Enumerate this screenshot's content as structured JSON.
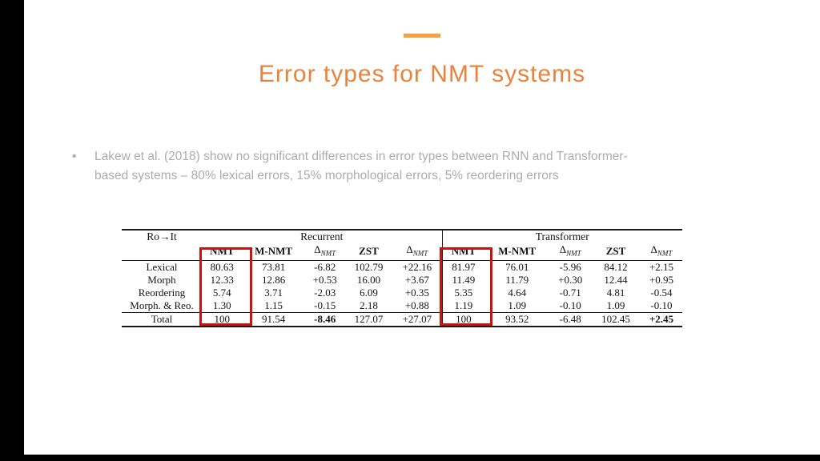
{
  "slide": {
    "title": "Error types for NMT systems",
    "title_color": "#e8823c",
    "bar_color": "#f0a33e",
    "bullet_marker": "•",
    "bullet_color": "#acacac",
    "bullet_lines": [
      "Lakew et al. (2018) show no significant differences in error types between RNN and Transformer-",
      "based systems – 80% lexical errors, 15% morphological errors, 5% reordering errors"
    ]
  },
  "table": {
    "corner_label": "Ro→It",
    "group_headers": [
      "Recurrent",
      "Transformer"
    ],
    "col_headers": [
      "NMT",
      "M-NMT",
      "Δ_NMT",
      "ZST",
      "Δ_NMT",
      "NMT",
      "M-NMT",
      "Δ_NMT",
      "ZST",
      "Δ_NMT"
    ],
    "rows": [
      {
        "label": "Lexical",
        "values": [
          "80.63",
          "73.81",
          "-6.82",
          "102.79",
          "+22.16",
          "81.97",
          "76.01",
          "-5.96",
          "84.12",
          "+2.15"
        ]
      },
      {
        "label": "Morph",
        "values": [
          "12.33",
          "12.86",
          "+0.53",
          "16.00",
          "+3.67",
          "11.49",
          "11.79",
          "+0.30",
          "12.44",
          "+0.95"
        ]
      },
      {
        "label": "Reordering",
        "values": [
          "5.74",
          "3.71",
          "-2.03",
          "6.09",
          "+0.35",
          "5.35",
          "4.64",
          "-0.71",
          "4.81",
          "-0.54"
        ]
      },
      {
        "label": "Morph. & Reo.",
        "values": [
          "1.30",
          "1.15",
          "-0.15",
          "2.18",
          "+0.88",
          "1.19",
          "1.09",
          "-0.10",
          "1.09",
          "-0.10"
        ]
      }
    ],
    "total_row": {
      "label": "Total",
      "values": [
        "100",
        "91.54",
        "-8.46",
        "127.07",
        "+27.07",
        "100",
        "93.52",
        "-6.48",
        "102.45",
        "+2.45"
      ],
      "bold_indices": [
        2,
        9
      ]
    },
    "highlighted_columns": [
      "Recurrent NMT",
      "Transformer NMT"
    ],
    "highlight_color": "#cc1111"
  }
}
